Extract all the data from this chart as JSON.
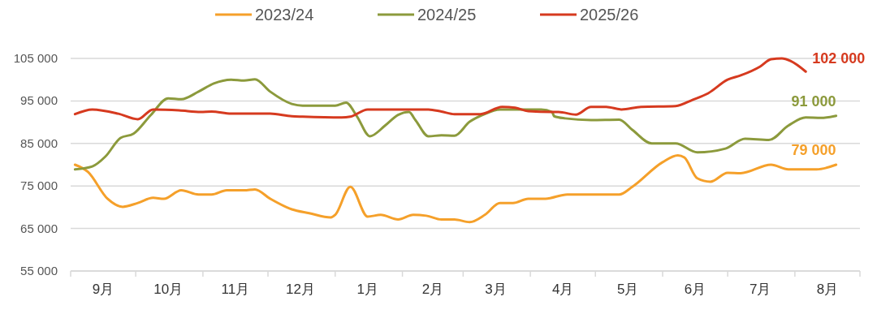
{
  "chart_data": {
    "type": "line",
    "xlim": [
      "2024-09-01",
      "2025-08-31"
    ],
    "xticks": [
      {
        "value": "2024-09-01",
        "label": null
      },
      {
        "value": "2024-09-16",
        "label": "9月"
      },
      {
        "value": "2024-10-01",
        "label": null
      },
      {
        "value": "2024-10-16",
        "label": "10月"
      },
      {
        "value": "2024-11-01",
        "label": null
      },
      {
        "value": "2024-11-16",
        "label": "11月"
      },
      {
        "value": "2024-12-01",
        "label": null
      },
      {
        "value": "2024-12-16",
        "label": "12月"
      },
      {
        "value": "2025-01-01",
        "label": null
      },
      {
        "value": "2025-01-16",
        "label": "1月"
      },
      {
        "value": "2025-02-01",
        "label": null
      },
      {
        "value": "2025-02-15",
        "label": "2月"
      },
      {
        "value": "2025-03-01",
        "label": null
      },
      {
        "value": "2025-03-16",
        "label": "3月"
      },
      {
        "value": "2025-04-01",
        "label": null
      },
      {
        "value": "2025-04-16",
        "label": "4月"
      },
      {
        "value": "2025-05-01",
        "label": null
      },
      {
        "value": "2025-05-16",
        "label": "5月"
      },
      {
        "value": "2025-06-01",
        "label": null
      },
      {
        "value": "2025-06-16",
        "label": "6月"
      },
      {
        "value": "2025-07-01",
        "label": null
      },
      {
        "value": "2025-07-16",
        "label": "7月"
      },
      {
        "value": "2025-08-01",
        "label": null
      },
      {
        "value": "2025-08-16",
        "label": "8月"
      },
      {
        "value": "2025-08-31",
        "label": null
      }
    ],
    "ylim": [
      55000,
      105000
    ],
    "yticks": [
      {
        "value": 55000,
        "label": "55 000"
      },
      {
        "value": 65000,
        "label": "65 000"
      },
      {
        "value": 75000,
        "label": "75 000"
      },
      {
        "value": 85000,
        "label": "85 000"
      },
      {
        "value": 95000,
        "label": "95 000"
      },
      {
        "value": 105000,
        "label": "105 000"
      }
    ],
    "grid": "y",
    "legend": "top",
    "marker": "none",
    "line_style": "solid",
    "series": [
      {
        "name": "2023/24",
        "color": "#f5a02a",
        "x": [
          "2024-09-03",
          "2024-09-09",
          "2024-09-18",
          "2024-09-25",
          "2024-10-02",
          "2024-10-09",
          "2024-10-14",
          "2024-10-22",
          "2024-10-30",
          "2024-11-05",
          "2024-11-12",
          "2024-11-20",
          "2024-11-25",
          "2024-12-02",
          "2024-12-12",
          "2024-12-20",
          "2024-12-30",
          "2025-01-01",
          "2025-01-08",
          "2025-01-16",
          "2025-01-22",
          "2025-01-30",
          "2025-02-06",
          "2025-02-12",
          "2025-02-19",
          "2025-02-25",
          "2025-03-04",
          "2025-03-11",
          "2025-03-18",
          "2025-03-24",
          "2025-03-31",
          "2025-04-08",
          "2025-04-18",
          "2025-04-21",
          "2025-05-12",
          "2025-05-18",
          "2025-06-01",
          "2025-06-08",
          "2025-06-11",
          "2025-06-17",
          "2025-06-23",
          "2025-07-01",
          "2025-07-07",
          "2025-07-21",
          "2025-07-29",
          "2025-08-11",
          "2025-08-20"
        ],
        "values": [
          80000,
          78300,
          72000,
          70100,
          71000,
          72200,
          72000,
          74000,
          73000,
          73000,
          74000,
          74000,
          74200,
          72000,
          69500,
          68600,
          67600,
          68200,
          74800,
          67800,
          68200,
          67100,
          68200,
          68000,
          67100,
          67100,
          66500,
          68200,
          71000,
          71000,
          72000,
          72000,
          73000,
          73000,
          73000,
          74800,
          80600,
          82200,
          81700,
          76800,
          76000,
          78100,
          78000,
          80000,
          78900,
          78900,
          80000
        ]
      },
      {
        "name": "2024/25",
        "color": "#8c9a3c",
        "x": [
          "2024-09-03",
          "2024-09-11",
          "2024-09-17",
          "2024-09-24",
          "2024-09-30",
          "2024-10-08",
          "2024-10-16",
          "2024-10-22",
          "2024-10-30",
          "2024-11-06",
          "2024-11-14",
          "2024-11-20",
          "2024-11-25",
          "2024-12-02",
          "2024-12-12",
          "2024-12-17",
          "2025-01-01",
          "2025-01-06",
          "2025-01-11",
          "2025-01-17",
          "2025-01-24",
          "2025-01-30",
          "2025-02-04",
          "2025-02-07",
          "2025-02-13",
          "2025-02-19",
          "2025-02-25",
          "2025-03-04",
          "2025-03-10",
          "2025-03-18",
          "2025-04-06",
          "2025-04-11",
          "2025-04-12",
          "2025-04-17",
          "2025-04-29",
          "2025-05-12",
          "2025-05-18",
          "2025-05-27",
          "2025-06-07",
          "2025-06-17",
          "2025-06-30",
          "2025-07-09",
          "2025-07-20",
          "2025-07-29",
          "2025-08-06",
          "2025-08-13",
          "2025-08-20"
        ],
        "values": [
          78900,
          79600,
          81900,
          86300,
          87300,
          91700,
          95600,
          95400,
          97200,
          99100,
          100000,
          99800,
          100100,
          97200,
          94300,
          93900,
          93900,
          94600,
          91400,
          86700,
          89200,
          91700,
          92400,
          90500,
          86700,
          86900,
          86800,
          90100,
          91700,
          93000,
          93000,
          92400,
          91400,
          90900,
          90500,
          90600,
          88200,
          85000,
          85000,
          82900,
          83800,
          86100,
          85800,
          89200,
          91100,
          91000,
          91500
        ]
      },
      {
        "name": "2025/26",
        "color": "#d63a1f",
        "x": [
          "2024-09-03",
          "2024-09-11",
          "2024-09-23",
          "2024-10-02",
          "2024-10-09",
          "2024-10-21",
          "2024-10-31",
          "2024-11-05",
          "2024-11-14",
          "2024-12-02",
          "2024-12-12",
          "2024-12-17",
          "2025-01-04",
          "2025-01-08",
          "2025-01-16",
          "2025-02-13",
          "2025-02-19",
          "2025-02-25",
          "2025-03-09",
          "2025-03-19",
          "2025-03-25",
          "2025-03-31",
          "2025-04-11",
          "2025-04-14",
          "2025-04-22",
          "2025-04-29",
          "2025-05-06",
          "2025-05-13",
          "2025-05-22",
          "2025-06-07",
          "2025-06-15",
          "2025-06-22",
          "2025-07-01",
          "2025-07-07",
          "2025-07-16",
          "2025-07-21",
          "2025-07-26",
          "2025-07-30",
          "2025-08-06"
        ],
        "values": [
          91900,
          93000,
          92000,
          90700,
          93000,
          92800,
          92400,
          92500,
          92000,
          92000,
          91400,
          91300,
          91100,
          91300,
          93000,
          93000,
          92500,
          91900,
          91900,
          93600,
          93400,
          92600,
          92400,
          92400,
          91800,
          93600,
          93600,
          93000,
          93600,
          93800,
          95300,
          96800,
          100000,
          101000,
          103100,
          104800,
          105000,
          104400,
          101900
        ]
      }
    ],
    "annotations": [
      "79 000",
      "91 000",
      "102 000"
    ]
  }
}
